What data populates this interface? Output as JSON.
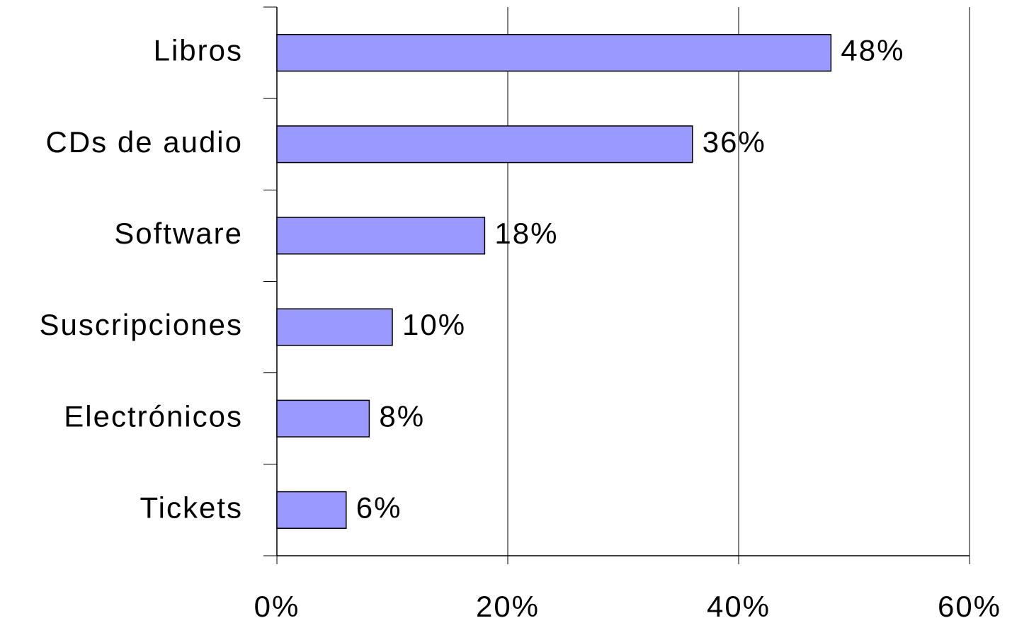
{
  "chart_data": {
    "type": "bar",
    "orientation": "horizontal",
    "categories": [
      "Libros",
      "CDs de audio",
      "Software",
      "Suscripciones",
      "Electrónicos",
      "Tickets"
    ],
    "values": [
      48,
      36,
      18,
      10,
      8,
      6
    ],
    "value_labels": [
      "48%",
      "36%",
      "18%",
      "10%",
      "8%",
      "6%"
    ],
    "color": "#9999ff",
    "xlim": [
      0,
      60
    ],
    "xticks": [
      {
        "value": 0,
        "label": "0%"
      },
      {
        "value": 20,
        "label": "20%"
      },
      {
        "value": 40,
        "label": "40%"
      },
      {
        "value": 60,
        "label": "60%"
      }
    ],
    "grid": true
  }
}
